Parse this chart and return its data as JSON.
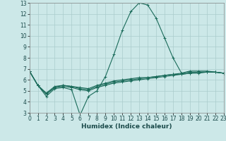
{
  "xlabel": "Humidex (Indice chaleur)",
  "background_color": "#cce8e8",
  "grid_color": "#aacccc",
  "line_color": "#1a6b5a",
  "x_data": [
    0,
    1,
    2,
    3,
    4,
    5,
    6,
    7,
    8,
    9,
    10,
    11,
    12,
    13,
    14,
    15,
    16,
    17,
    18,
    19,
    20,
    21,
    22,
    23
  ],
  "lines": [
    [
      6.8,
      5.5,
      4.5,
      5.2,
      5.3,
      5.1,
      2.8,
      4.5,
      5.0,
      6.3,
      8.3,
      10.5,
      12.2,
      13.0,
      12.8,
      11.6,
      9.8,
      8.0,
      6.6,
      6.8,
      6.8,
      6.8,
      6.7,
      6.6
    ],
    [
      6.8,
      5.5,
      4.7,
      5.3,
      5.4,
      5.3,
      5.1,
      5.0,
      5.3,
      5.5,
      5.7,
      5.8,
      5.9,
      6.0,
      6.1,
      6.2,
      6.3,
      6.4,
      6.5,
      6.6,
      6.6,
      6.7,
      6.7,
      6.6
    ],
    [
      6.8,
      5.5,
      4.7,
      5.3,
      5.5,
      5.4,
      5.2,
      5.1,
      5.4,
      5.6,
      5.8,
      5.9,
      6.0,
      6.1,
      6.2,
      6.3,
      6.4,
      6.5,
      6.5,
      6.6,
      6.7,
      6.7,
      6.7,
      6.6
    ],
    [
      6.8,
      5.5,
      4.8,
      5.4,
      5.5,
      5.4,
      5.3,
      5.2,
      5.5,
      5.7,
      5.9,
      6.0,
      6.1,
      6.2,
      6.2,
      6.3,
      6.4,
      6.5,
      6.6,
      6.7,
      6.7,
      6.7,
      6.7,
      6.6
    ]
  ],
  "xlim": [
    0,
    23
  ],
  "ylim": [
    3,
    13
  ],
  "yticks": [
    3,
    4,
    5,
    6,
    7,
    8,
    9,
    10,
    11,
    12,
    13
  ],
  "xticks": [
    0,
    1,
    2,
    3,
    4,
    5,
    6,
    7,
    8,
    9,
    10,
    11,
    12,
    13,
    14,
    15,
    16,
    17,
    18,
    19,
    20,
    21,
    22,
    23
  ],
  "xtick_labels": [
    "0",
    "1",
    "2",
    "3",
    "4",
    "5",
    "6",
    "7",
    "8",
    "9",
    "10",
    "11",
    "12",
    "13",
    "14",
    "15",
    "16",
    "17",
    "18",
    "19",
    "20",
    "21",
    "22",
    "23"
  ],
  "marker": "+",
  "marker_size": 3,
  "line_width": 0.8,
  "tick_fontsize": 5.5,
  "xlabel_fontsize": 6.5
}
